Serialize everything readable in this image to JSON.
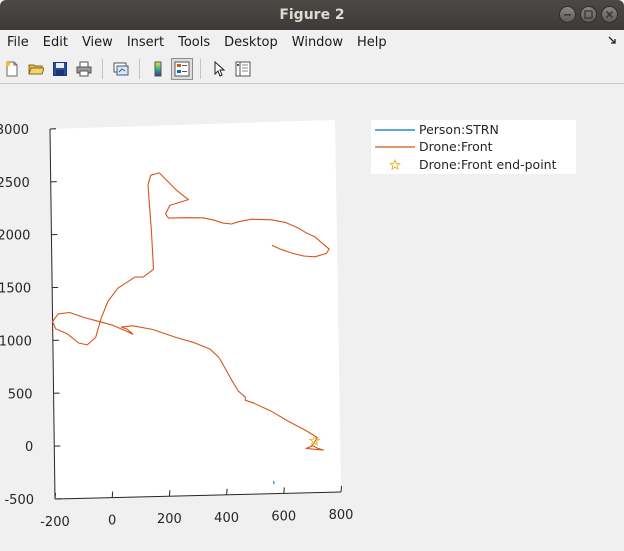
{
  "window": {
    "title": "Figure 2",
    "buttons": [
      "minimize-icon",
      "maximize-icon",
      "close-icon"
    ]
  },
  "menubar": {
    "items": [
      {
        "label": "File"
      },
      {
        "label": "Edit"
      },
      {
        "label": "View"
      },
      {
        "label": "Insert"
      },
      {
        "label": "Tools"
      },
      {
        "label": "Desktop"
      },
      {
        "label": "Window"
      },
      {
        "label": "Help"
      }
    ]
  },
  "toolbar": {
    "icons": [
      "new-figure-icon",
      "open-file-icon",
      "save-icon",
      "print-icon",
      "link-plot-icon",
      "colorbar-icon",
      "legend-icon",
      "pointer-icon",
      "property-inspector-icon"
    ]
  },
  "chart_data": {
    "type": "line",
    "xlim": [
      -200,
      800
    ],
    "ylim": [
      -500,
      3000
    ],
    "x_ticks": [
      "-200",
      "0",
      "200",
      "400",
      "600",
      "800"
    ],
    "y_ticks": [
      "3000",
      "2500",
      "2000",
      "1500",
      "1000",
      "500",
      "0",
      "-500"
    ],
    "legend": {
      "placement": "outside-top-right",
      "entries": [
        {
          "label": "Person:STRN",
          "color": "#0072bd",
          "symbol": "line"
        },
        {
          "label": "Drone:Front",
          "color": "#d95319",
          "symbol": "line"
        },
        {
          "label": "Drone:Front end-point",
          "color": "#edb120",
          "symbol": "star"
        }
      ]
    },
    "series": [
      {
        "name": "Person:STRN",
        "color": "#0072bd",
        "points": [
          [
            565,
            -380
          ],
          [
            567,
            -410
          ]
        ]
      },
      {
        "name": "Drone:Front",
        "color": "#d95319",
        "points": [
          [
            570,
            1850
          ],
          [
            600,
            1810
          ],
          [
            640,
            1770
          ],
          [
            680,
            1740
          ],
          [
            720,
            1730
          ],
          [
            760,
            1760
          ],
          [
            770,
            1800
          ],
          [
            745,
            1860
          ],
          [
            720,
            1920
          ],
          [
            690,
            1960
          ],
          [
            660,
            2010
          ],
          [
            620,
            2060
          ],
          [
            570,
            2090
          ],
          [
            500,
            2100
          ],
          [
            455,
            2080
          ],
          [
            430,
            2060
          ],
          [
            400,
            2070
          ],
          [
            370,
            2100
          ],
          [
            330,
            2125
          ],
          [
            270,
            2130
          ],
          [
            210,
            2130
          ],
          [
            200,
            2170
          ],
          [
            215,
            2250
          ],
          [
            280,
            2300
          ],
          [
            240,
            2390
          ],
          [
            180,
            2560
          ],
          [
            150,
            2540
          ],
          [
            140,
            2450
          ],
          [
            150,
            2000
          ],
          [
            155,
            1650
          ],
          [
            120,
            1580
          ],
          [
            90,
            1580
          ],
          [
            30,
            1480
          ],
          [
            -5,
            1360
          ],
          [
            -30,
            1200
          ],
          [
            -50,
            1020
          ],
          [
            -80,
            950
          ],
          [
            -110,
            970
          ],
          [
            -150,
            1060
          ],
          [
            -190,
            1110
          ],
          [
            -200,
            1180
          ],
          [
            -180,
            1250
          ],
          [
            -140,
            1260
          ],
          [
            -90,
            1210
          ],
          [
            -40,
            1170
          ],
          [
            10,
            1130
          ],
          [
            50,
            1080
          ],
          [
            80,
            1040
          ],
          [
            60,
            1090
          ],
          [
            40,
            1110
          ],
          [
            80,
            1120
          ],
          [
            150,
            1080
          ],
          [
            230,
            1000
          ],
          [
            290,
            950
          ],
          [
            350,
            880
          ],
          [
            380,
            800
          ],
          [
            400,
            700
          ],
          [
            420,
            600
          ],
          [
            445,
            480
          ],
          [
            470,
            420
          ],
          [
            470,
            390
          ],
          [
            500,
            360
          ],
          [
            560,
            280
          ],
          [
            620,
            180
          ],
          [
            680,
            90
          ],
          [
            720,
            20
          ],
          [
            700,
            -60
          ],
          [
            680,
            -80
          ],
          [
            710,
            -90
          ],
          [
            740,
            -100
          ],
          [
            720,
            -80
          ],
          [
            700,
            -50
          ]
        ]
      },
      {
        "name": "Drone:Front end-point",
        "color": "#edb120",
        "marker": "star",
        "points": [
          [
            710,
            -10
          ]
        ]
      }
    ]
  }
}
